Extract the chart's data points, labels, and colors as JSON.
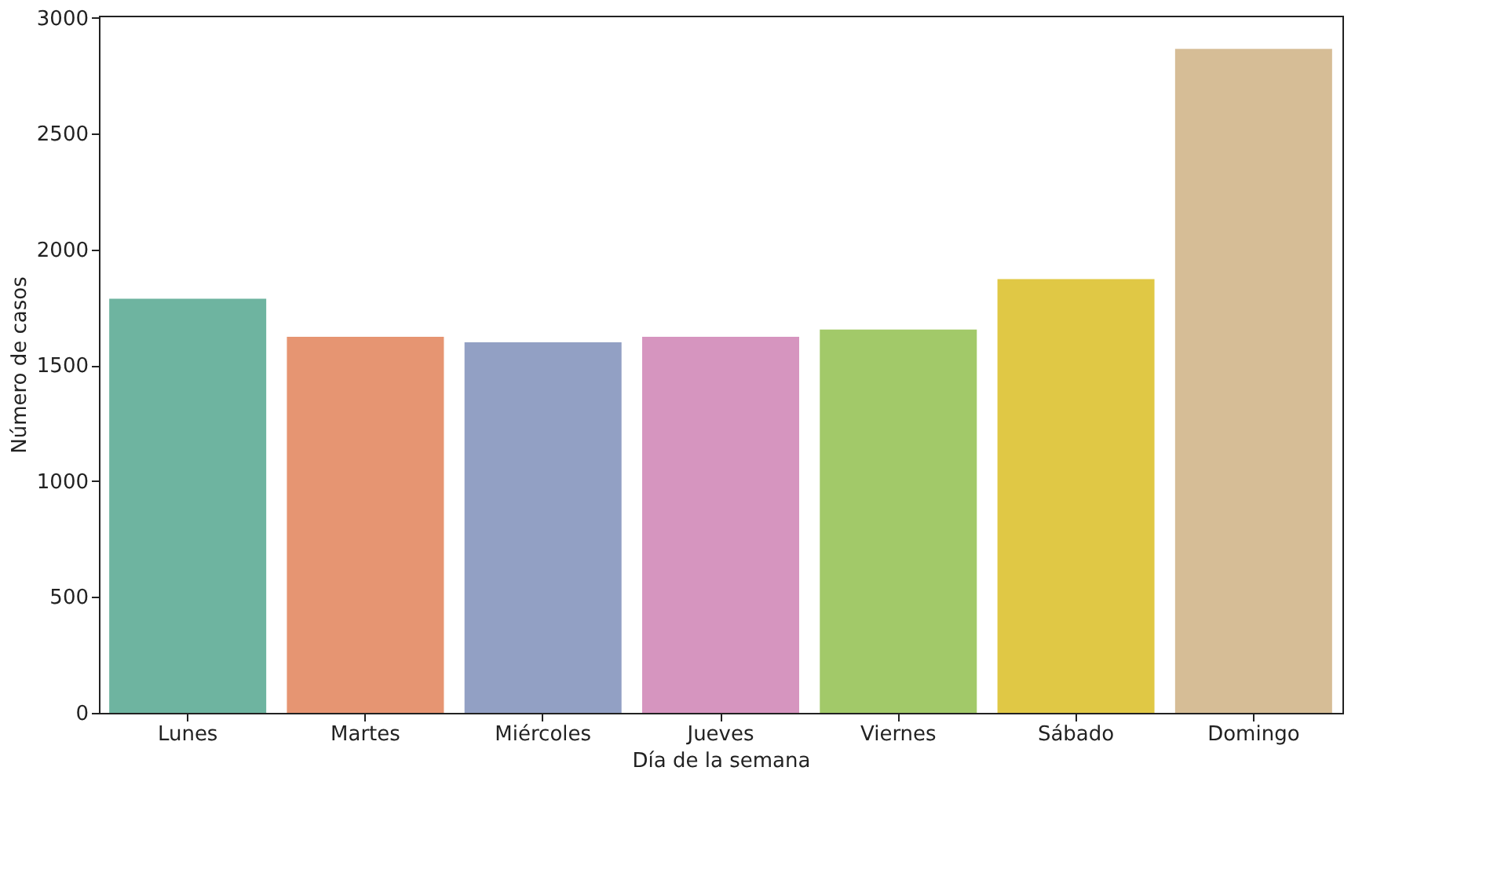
{
  "chart_data": {
    "type": "bar",
    "xlabel": "Día de la semana",
    "ylabel": "Número de casos",
    "categories": [
      "Lunes",
      "Martes",
      "Miércoles",
      "Jueves",
      "Viernes",
      "Sábado",
      "Domingo"
    ],
    "values": [
      1788,
      1624,
      1600,
      1624,
      1655,
      1873,
      2867
    ],
    "colors": [
      "#6eb4a0",
      "#e69572",
      "#92a0c4",
      "#d695bf",
      "#a2c969",
      "#e0c845",
      "#d6bd96"
    ],
    "ylim": [
      0,
      3010
    ],
    "yticks": [
      0,
      500,
      1000,
      1500,
      2000,
      2500,
      3000
    ],
    "grid": false
  }
}
